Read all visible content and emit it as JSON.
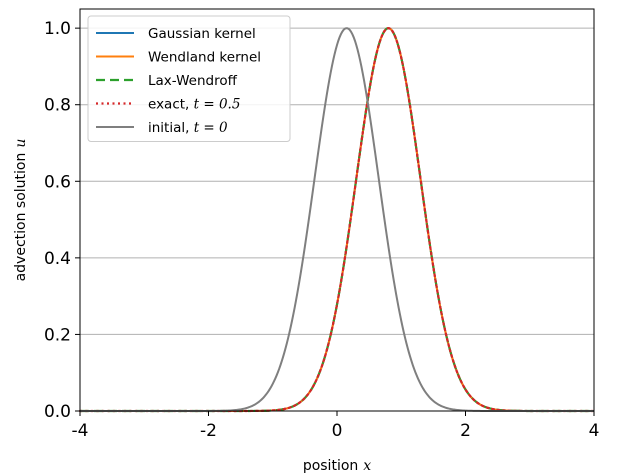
{
  "chart_data": {
    "type": "line",
    "xlabel": "position",
    "xlabel_var": "x",
    "ylabel": "advection solution",
    "ylabel_var": "u",
    "xlim": [
      -4,
      4
    ],
    "ylim": [
      0,
      1.05
    ],
    "xticks": [
      -4,
      -2,
      0,
      2,
      4
    ],
    "xtick_labels": [
      "-4",
      "-2",
      "0",
      "2",
      "4"
    ],
    "yticks": [
      0,
      0.2,
      0.4,
      0.6,
      0.8,
      1.0
    ],
    "ytick_labels": [
      "0.0",
      "0.2",
      "0.4",
      "0.6",
      "0.8",
      "1.0"
    ],
    "grid": "horizontal",
    "legend_position": "top-left",
    "series": [
      {
        "name": "Gaussian kernel",
        "color": "#1f77b4",
        "style": "solid",
        "center": 0.8,
        "peak": 1.0,
        "width": 0.5
      },
      {
        "name": "Wendland kernel",
        "color": "#ff7f0e",
        "style": "solid",
        "center": 0.8,
        "peak": 1.0,
        "width": 0.5
      },
      {
        "name": "Lax-Wendroff",
        "color": "#2ca02c",
        "style": "dashed",
        "center": 0.8,
        "peak": 1.0,
        "width": 0.5
      },
      {
        "name": "exact, ",
        "name_math": "t = 0.5",
        "color": "#d62728",
        "style": "dotted",
        "center": 0.8,
        "peak": 1.0,
        "width": 0.5
      },
      {
        "name": "initial, ",
        "name_math": "t = 0",
        "color": "#7f7f7f",
        "style": "solid",
        "center": 0.15,
        "peak": 1.0,
        "width": 0.5
      }
    ]
  }
}
